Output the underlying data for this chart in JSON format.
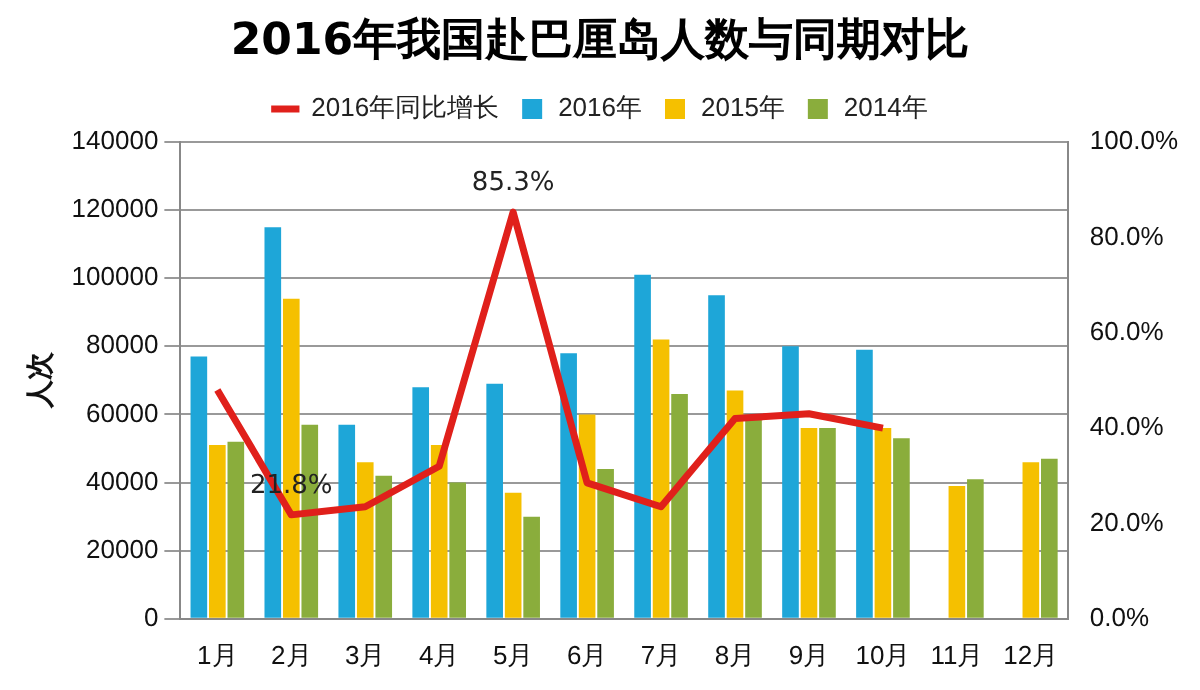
{
  "chart_data": {
    "type": "bar",
    "title": "2016年我国赴巴厘岛人数与同期对比",
    "ylabel": "人次",
    "categories": [
      "1月",
      "2月",
      "3月",
      "4月",
      "5月",
      "6月",
      "7月",
      "8月",
      "9月",
      "10月",
      "11月",
      "12月"
    ],
    "series": [
      {
        "name": "2016年",
        "color": "#1ea6d8",
        "values": [
          77000,
          115000,
          57000,
          68000,
          69000,
          78000,
          101000,
          95000,
          80000,
          79000,
          null,
          null
        ]
      },
      {
        "name": "2015年",
        "color": "#f5c000",
        "values": [
          51000,
          94000,
          46000,
          51000,
          37000,
          60000,
          82000,
          67000,
          56000,
          56000,
          39000,
          46000
        ]
      },
      {
        "name": "2014年",
        "color": "#8aad3c",
        "values": [
          52000,
          57000,
          42000,
          40000,
          30000,
          44000,
          66000,
          60000,
          56000,
          53000,
          41000,
          47000
        ]
      },
      {
        "name": "2016年同比增长",
        "type": "line",
        "axis": "y2",
        "color": "#e0201b",
        "values": [
          48,
          21.8,
          23.5,
          32,
          85.3,
          28.5,
          23.5,
          42,
          43,
          40,
          null,
          null
        ],
        "value_labels": [
          null,
          "21.8%",
          null,
          null,
          "85.3%",
          null,
          null,
          null,
          null,
          null,
          null,
          null
        ]
      }
    ],
    "ylim": [
      0,
      140000
    ],
    "yticks": [
      0,
      20000,
      40000,
      60000,
      80000,
      100000,
      120000,
      140000
    ],
    "y2lim": [
      0,
      100
    ],
    "y2ticks": [
      {
        "value": 0,
        "label": "0.0%"
      },
      {
        "value": 20,
        "label": "20.0%"
      },
      {
        "value": 40,
        "label": "40.0%"
      },
      {
        "value": 60,
        "label": "60.0%"
      },
      {
        "value": 80,
        "label": "80.0%"
      },
      {
        "value": 100,
        "label": "100.0%"
      }
    ],
    "grid": "y",
    "legend": "top",
    "marker": "none",
    "line_style": "solid"
  }
}
